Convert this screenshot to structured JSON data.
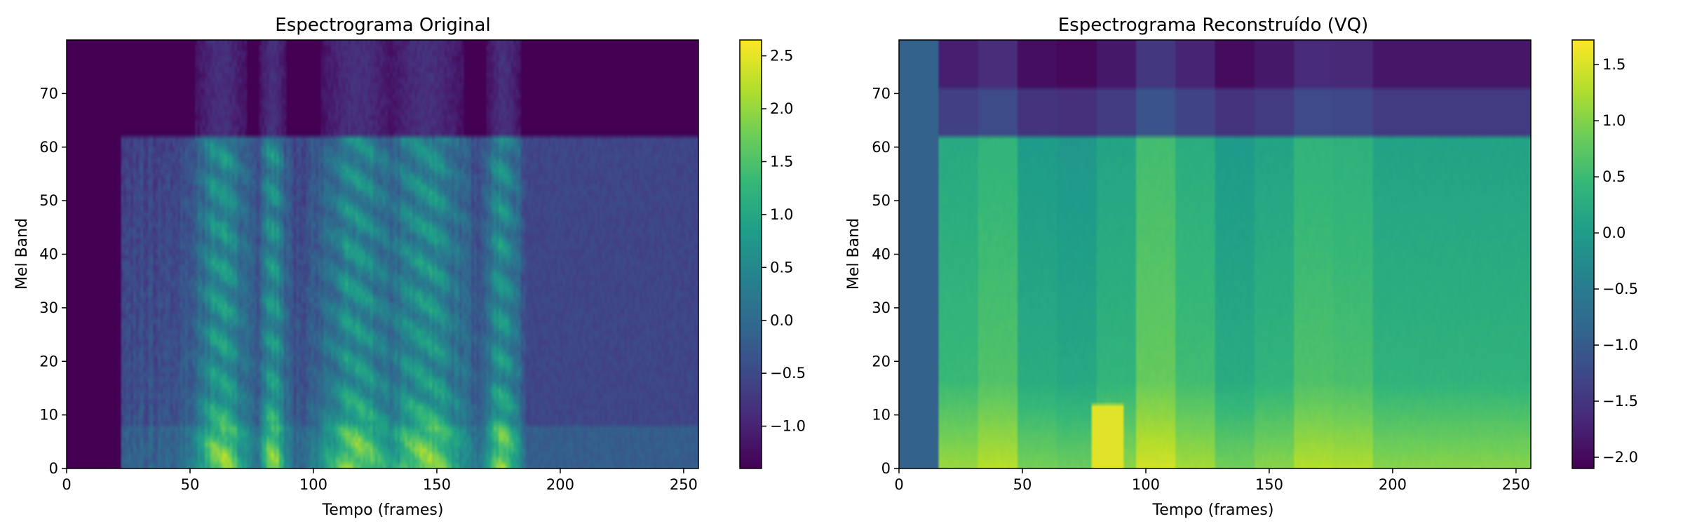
{
  "figure": {
    "colormap": "viridis",
    "colors": {
      "background": "#ffffff",
      "axis": "#000000",
      "viridis_low": "#440154",
      "viridis_mid": "#21918c",
      "viridis_high": "#fde725"
    }
  },
  "chart_data": [
    {
      "type": "heatmap",
      "title": "Espectrograma Original",
      "xlabel": "Tempo (frames)",
      "ylabel": "Mel Band",
      "xlim": [
        0,
        256
      ],
      "ylim": [
        0,
        80
      ],
      "xticks": [
        0,
        50,
        100,
        150,
        200,
        250
      ],
      "yticks": [
        0,
        10,
        20,
        30,
        40,
        50,
        60,
        70
      ],
      "colorbar": {
        "min": -1.4,
        "max": 2.65,
        "ticks": [
          "2.5",
          "2.0",
          "1.5",
          "1.0",
          "0.5",
          "0.0",
          "−0.5",
          "−1.0"
        ],
        "tick_values": [
          2.5,
          2.0,
          1.5,
          1.0,
          0.5,
          0.0,
          -0.5,
          -1.0
        ]
      },
      "regions": {
        "silence_until_frame": 22,
        "speech_bursts_frames": [
          [
            52,
            72
          ],
          [
            78,
            88
          ],
          [
            103,
            132
          ],
          [
            130,
            160
          ],
          [
            170,
            183
          ]
        ],
        "active_band_limit": 62,
        "fill_value": -1.4
      }
    },
    {
      "type": "heatmap",
      "title": "Espectrograma Reconstruído (VQ)",
      "xlabel": "Tempo (frames)",
      "ylabel": "Mel Band",
      "xlim": [
        0,
        256
      ],
      "ylim": [
        0,
        80
      ],
      "xticks": [
        0,
        50,
        100,
        150,
        200,
        250
      ],
      "yticks": [
        0,
        10,
        20,
        30,
        40,
        50,
        60,
        70
      ],
      "colorbar": {
        "min": -2.1,
        "max": 1.72,
        "ticks": [
          "1.5",
          "1.0",
          "0.5",
          "0.0",
          "−0.5",
          "−1.0",
          "−1.5",
          "−2.0"
        ],
        "tick_values": [
          1.5,
          1.0,
          0.5,
          0.0,
          -0.5,
          -1.0,
          -1.5,
          -2.0
        ]
      },
      "regions": {
        "frame_blocks": [
          0,
          16,
          32,
          48,
          64,
          80,
          96,
          112,
          128,
          144,
          160,
          176,
          192,
          256
        ],
        "first_block_value": -0.9,
        "active_band_limit": 62
      }
    }
  ]
}
